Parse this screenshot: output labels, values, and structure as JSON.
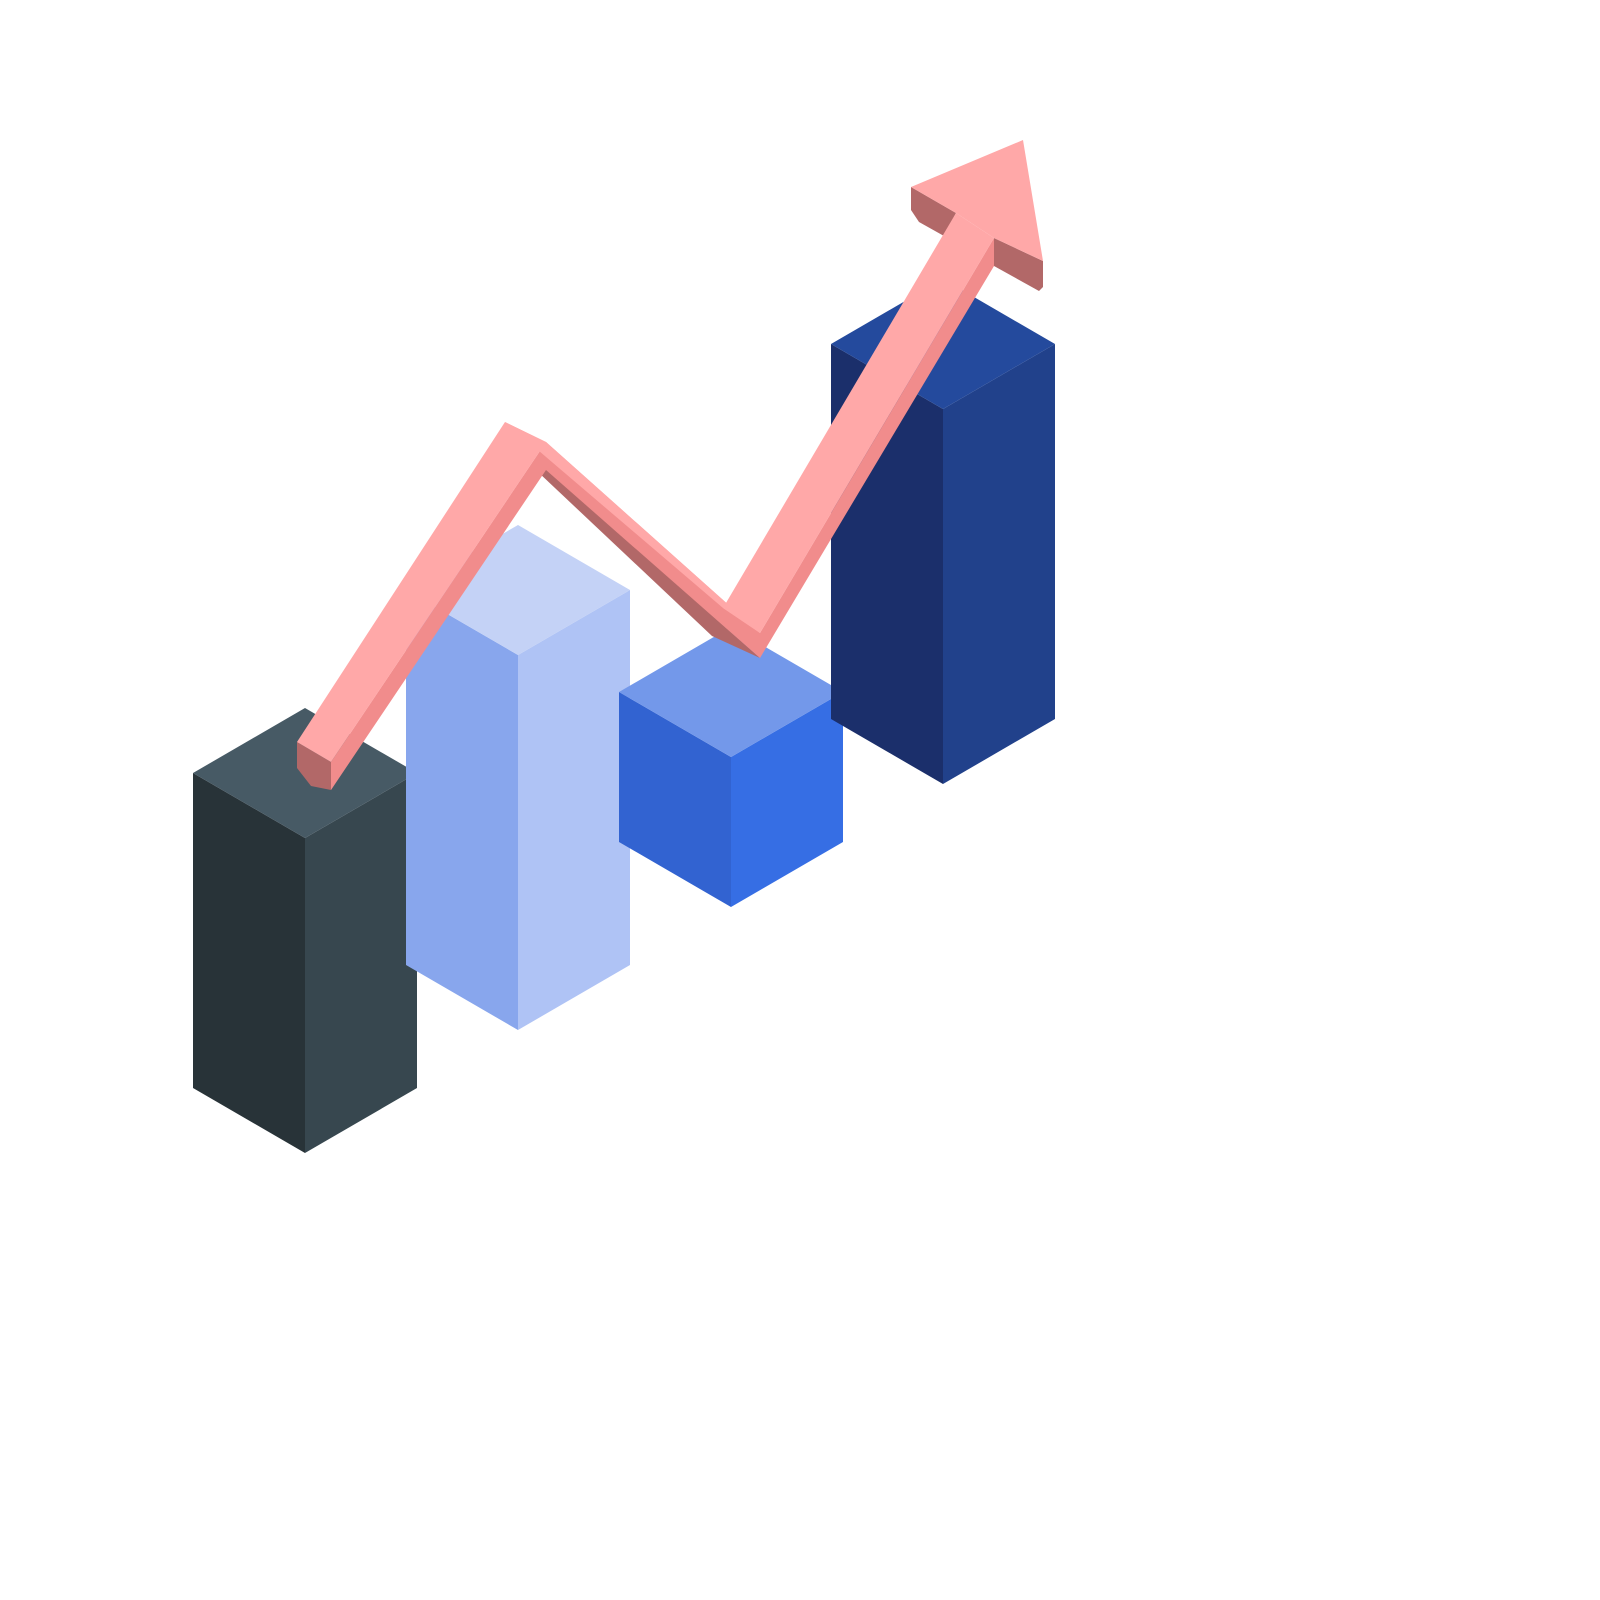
{
  "illustration": {
    "subject": "isometric-bar-chart-with-rising-arrow",
    "bars": [
      {
        "name": "bar-1",
        "relative_height": 0.84,
        "colors": {
          "top": "#475a65",
          "left": "#283338",
          "right": "#37474f"
        }
      },
      {
        "name": "bar-2",
        "relative_height": 1.0,
        "colors": {
          "top": "#c4d2f6",
          "left": "#88a6ed",
          "right": "#afc3f5"
        }
      },
      {
        "name": "bar-3",
        "relative_height": 0.4,
        "colors": {
          "top": "#7398ea",
          "left": "#3263d1",
          "right": "#366ee4"
        }
      },
      {
        "name": "bar-4",
        "relative_height": 1.0,
        "colors": {
          "top": "#244a9d",
          "left": "#1b2f6b",
          "right": "#21418b"
        }
      }
    ],
    "arrow": {
      "trend": "up",
      "colors": {
        "face": "#ffa8a8",
        "side": "#f18c8c",
        "shadow": "#b26868"
      }
    }
  }
}
